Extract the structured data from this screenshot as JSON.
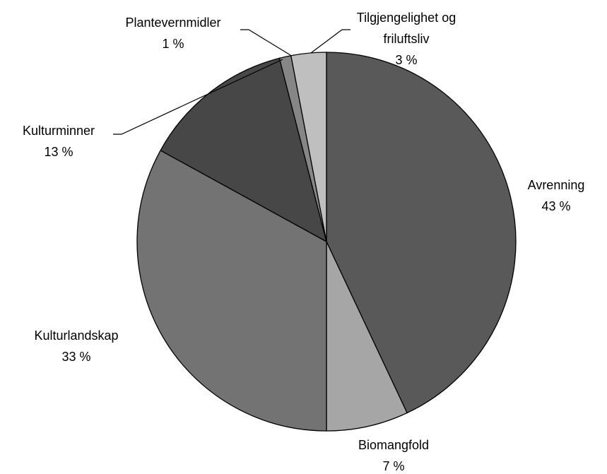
{
  "chart_data": {
    "type": "pie",
    "categories": [
      "Avrenning",
      "Biomangfold",
      "Kulturlandskap",
      "Kulturminner",
      "Plantevernmidler",
      "Tilgjengelighet og friluftsliv"
    ],
    "values": [
      43,
      7,
      33,
      13,
      1,
      3
    ],
    "value_labels": [
      "43 %",
      "7 %",
      "33 %",
      "13 %",
      "1 %",
      "3 %"
    ],
    "colors": [
      "#595959",
      "#a6a6a6",
      "#737373",
      "#474747",
      "#868686",
      "#bfbfbf"
    ]
  }
}
